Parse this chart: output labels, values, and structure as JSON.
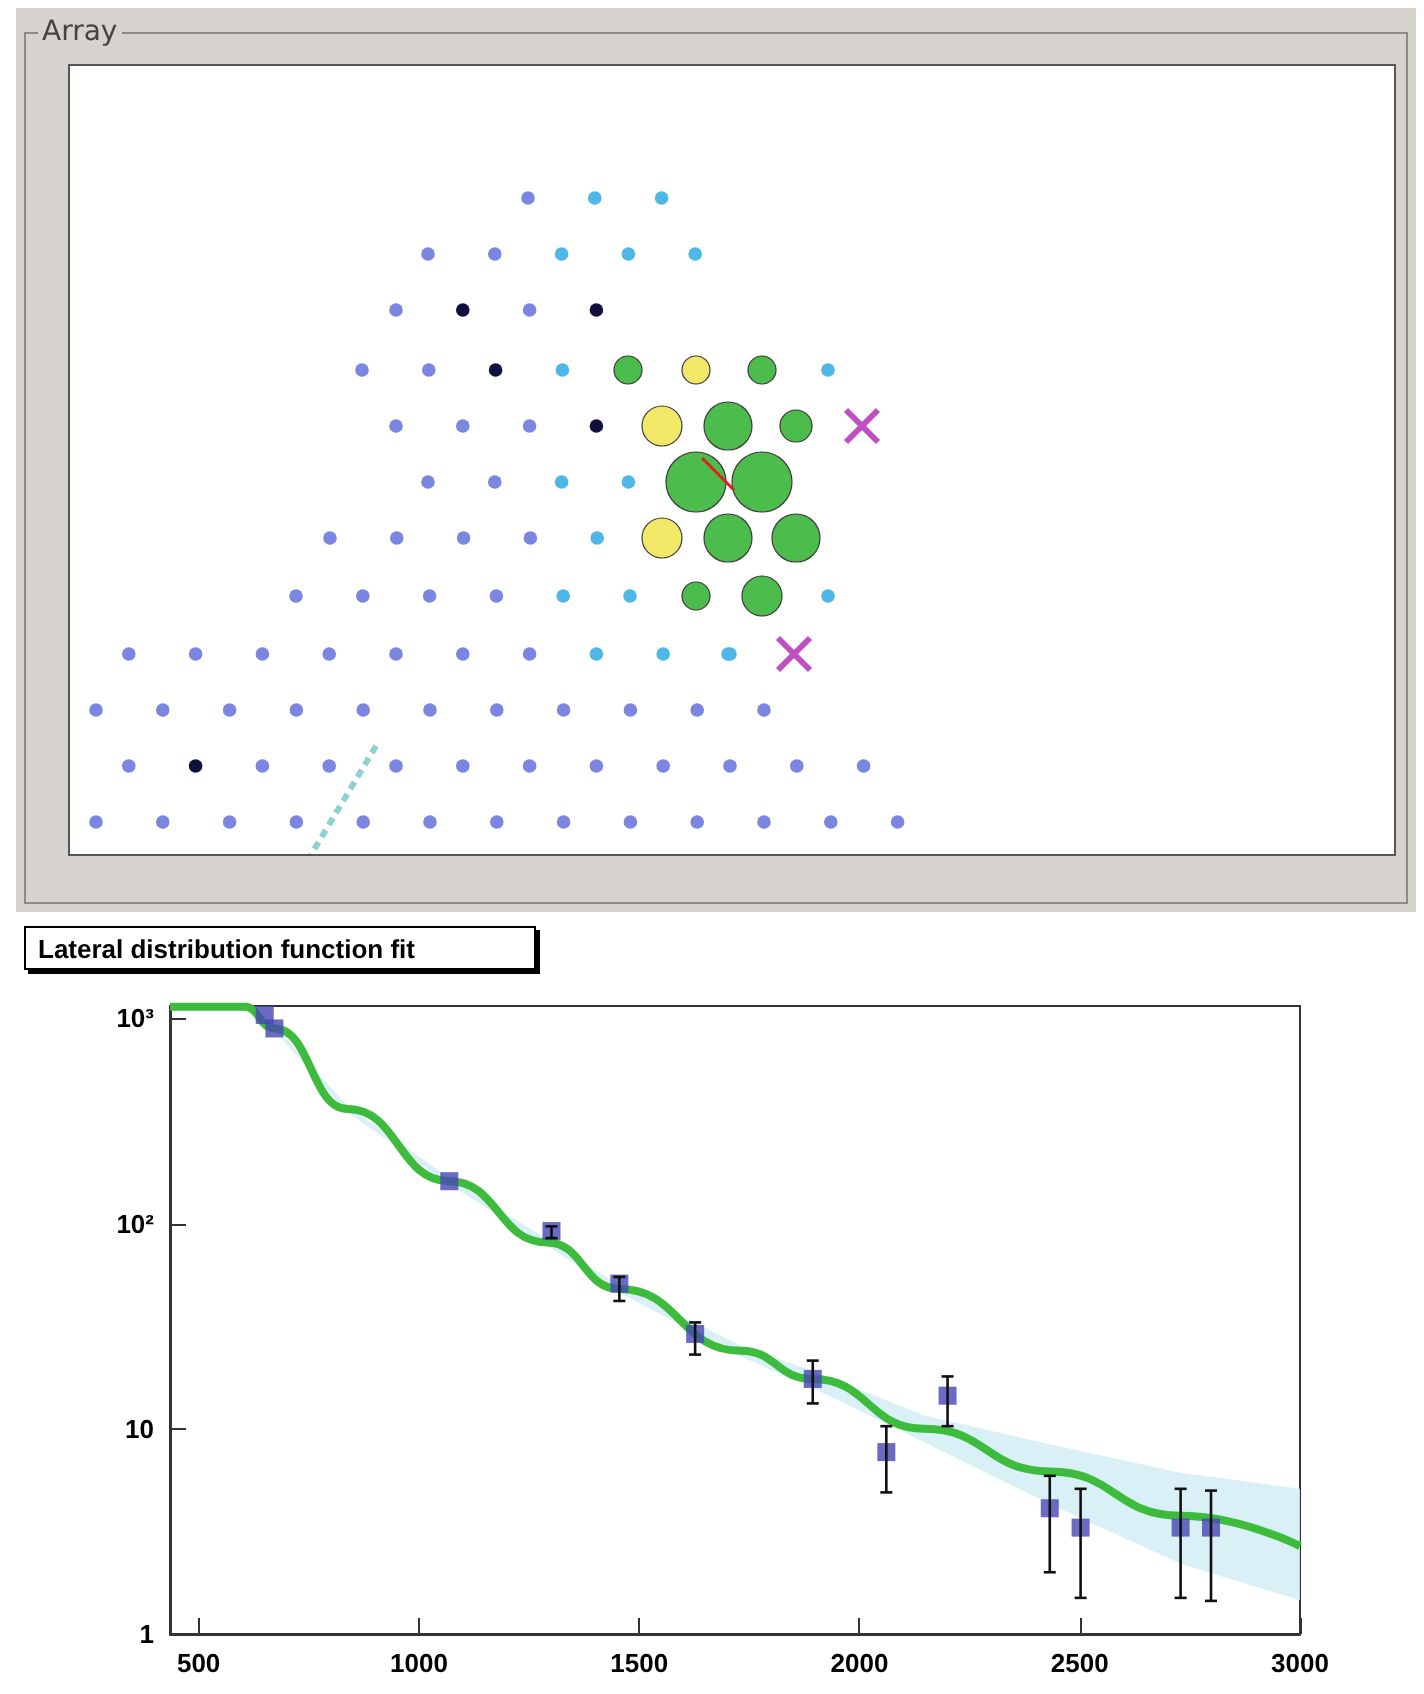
{
  "chart_data": [
    {
      "type": "other",
      "title": "Array"
    },
    {
      "type": "scatter",
      "title": "Lateral distribution function fit",
      "log": "y",
      "xlim": [
        435,
        3000
      ],
      "xticks": [
        500,
        1000,
        1500,
        2000,
        2500,
        3000
      ],
      "ylim": [
        1,
        1150
      ],
      "yticks": [
        1,
        10,
        {
          "value": 100,
          "label": "10²"
        },
        {
          "value": 1000,
          "label": "10³"
        }
      ],
      "series": [
        {
          "type": "line",
          "marker": "none",
          "color": "#3dbb3d",
          "x": [
            435,
            604,
            672,
            838,
            1069,
            1291,
            1455,
            1730,
            1894,
            2147,
            2432,
            2729,
            3000
          ],
          "values": [
            1140,
            1140,
            894,
            362,
            161,
            81,
            48,
            24,
            17.5,
            10,
            6.2,
            3.77,
            2.68
          ],
          "lower": [
            1130,
            1130,
            870,
            350,
            155,
            78,
            46,
            22.5,
            15.8,
            8.6,
            4.3,
            2.2,
            1.46
          ],
          "upper": [
            1150,
            1150,
            920,
            375,
            167,
            84,
            50,
            25.5,
            19.2,
            11.6,
            8.4,
            6.1,
            5.1
          ]
        },
        {
          "type": "scatter",
          "marker": "square",
          "color": "#4646b4",
          "x": [
            650,
            672,
            1069,
            1301,
            1455,
            1627,
            1894,
            2061,
            2200,
            2432,
            2502,
            2729,
            2798
          ],
          "values": [
            1040,
            894,
            161,
            92,
            51,
            29,
            17.5,
            7.7,
            14.5,
            4.1,
            3.3,
            3.3,
            3.3
          ],
          "errors": [
            null,
            null,
            null,
            [
              85,
              97
            ],
            [
              42,
              55
            ],
            [
              23,
              33
            ],
            [
              13.3,
              21.5
            ],
            [
              4.9,
              10.3
            ],
            [
              10.3,
              18
            ],
            [
              2,
              5.9
            ],
            [
              1.5,
              5.1
            ],
            [
              1.5,
              5.1
            ],
            [
              1.45,
              5
            ]
          ]
        }
      ]
    }
  ]
}
